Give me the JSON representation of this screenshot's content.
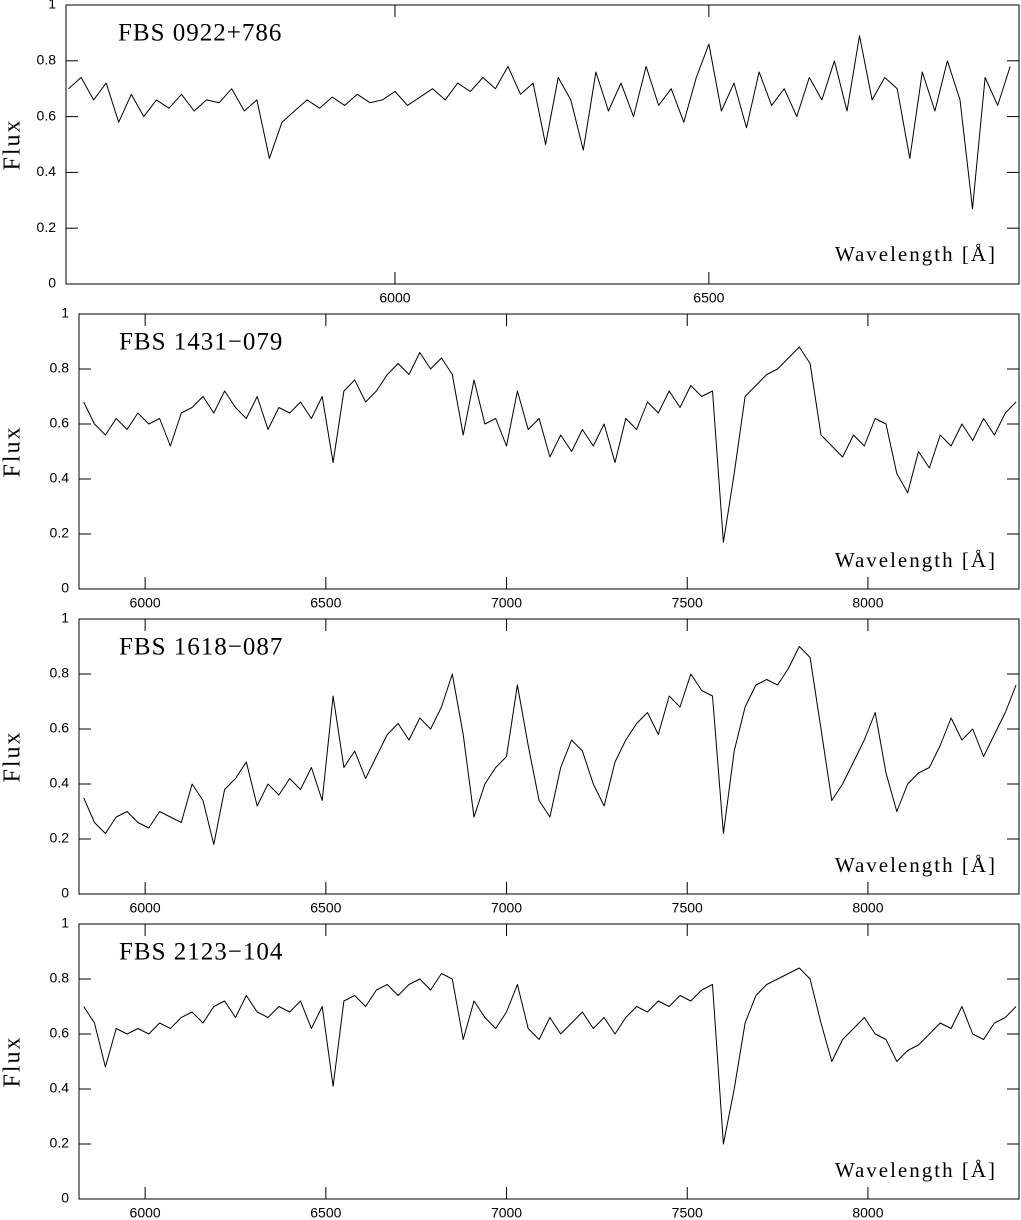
{
  "chart_data": [
    {
      "type": "line",
      "title": "FBS 0922+786",
      "xlabel": "Wavelength [Å]",
      "ylabel": "Flux",
      "color": "#000000",
      "xlim": [
        5476,
        6994
      ],
      "xticks": [
        6000,
        6500
      ],
      "ylim": [
        0,
        1
      ],
      "yticks": [
        0,
        0.2,
        0.4,
        0.6,
        0.8,
        1
      ],
      "x": [
        5480,
        5500,
        5520,
        5540,
        5560,
        5580,
        5600,
        5620,
        5640,
        5660,
        5680,
        5700,
        5720,
        5740,
        5760,
        5780,
        5800,
        5820,
        5840,
        5860,
        5880,
        5900,
        5920,
        5940,
        5960,
        5980,
        6000,
        6020,
        6040,
        6060,
        6080,
        6100,
        6120,
        6140,
        6160,
        6180,
        6200,
        6220,
        6240,
        6260,
        6280,
        6300,
        6320,
        6340,
        6360,
        6380,
        6400,
        6420,
        6440,
        6460,
        6480,
        6500,
        6520,
        6540,
        6560,
        6580,
        6600,
        6620,
        6640,
        6660,
        6680,
        6700,
        6720,
        6740,
        6760,
        6780,
        6800,
        6820,
        6840,
        6860,
        6880,
        6900,
        6920,
        6940,
        6960,
        6980
      ],
      "values": [
        0.7,
        0.74,
        0.66,
        0.72,
        0.58,
        0.68,
        0.6,
        0.66,
        0.63,
        0.68,
        0.62,
        0.66,
        0.65,
        0.7,
        0.62,
        0.66,
        0.45,
        0.58,
        0.62,
        0.66,
        0.63,
        0.67,
        0.64,
        0.68,
        0.65,
        0.66,
        0.69,
        0.64,
        0.67,
        0.7,
        0.66,
        0.72,
        0.69,
        0.74,
        0.7,
        0.78,
        0.68,
        0.72,
        0.5,
        0.74,
        0.66,
        0.48,
        0.76,
        0.62,
        0.72,
        0.6,
        0.78,
        0.64,
        0.7,
        0.58,
        0.74,
        0.86,
        0.62,
        0.72,
        0.56,
        0.76,
        0.64,
        0.7,
        0.6,
        0.74,
        0.66,
        0.8,
        0.62,
        0.89,
        0.66,
        0.74,
        0.7,
        0.45,
        0.76,
        0.62,
        0.8,
        0.66,
        0.27,
        0.74,
        0.64,
        0.78
      ]
    },
    {
      "type": "line",
      "title": "FBS 1431−079",
      "xlabel": "Wavelength [Å]",
      "ylabel": "Flux",
      "color": "#000000",
      "xlim": [
        5817,
        8418
      ],
      "xticks": [
        6000,
        6500,
        7000,
        7500,
        8000
      ],
      "ylim": [
        0,
        1
      ],
      "yticks": [
        0,
        0.2,
        0.4,
        0.6,
        0.8,
        1
      ],
      "x": [
        5830,
        5860,
        5890,
        5920,
        5950,
        5980,
        6010,
        6040,
        6070,
        6100,
        6130,
        6160,
        6190,
        6220,
        6250,
        6280,
        6310,
        6340,
        6370,
        6400,
        6430,
        6460,
        6490,
        6520,
        6550,
        6580,
        6610,
        6640,
        6670,
        6700,
        6730,
        6760,
        6790,
        6820,
        6850,
        6880,
        6910,
        6940,
        6970,
        7000,
        7030,
        7060,
        7090,
        7120,
        7150,
        7180,
        7210,
        7240,
        7270,
        7300,
        7330,
        7360,
        7390,
        7420,
        7450,
        7480,
        7510,
        7540,
        7570,
        7600,
        7630,
        7660,
        7690,
        7720,
        7750,
        7780,
        7810,
        7840,
        7870,
        7900,
        7930,
        7960,
        7990,
        8020,
        8050,
        8080,
        8110,
        8140,
        8170,
        8200,
        8230,
        8260,
        8290,
        8320,
        8350,
        8380,
        8410
      ],
      "values": [
        0.68,
        0.6,
        0.56,
        0.62,
        0.58,
        0.64,
        0.6,
        0.62,
        0.52,
        0.64,
        0.66,
        0.7,
        0.64,
        0.72,
        0.66,
        0.62,
        0.7,
        0.58,
        0.66,
        0.64,
        0.68,
        0.62,
        0.7,
        0.46,
        0.72,
        0.76,
        0.68,
        0.72,
        0.78,
        0.82,
        0.78,
        0.86,
        0.8,
        0.84,
        0.78,
        0.56,
        0.76,
        0.6,
        0.62,
        0.52,
        0.72,
        0.58,
        0.62,
        0.48,
        0.56,
        0.5,
        0.58,
        0.52,
        0.6,
        0.46,
        0.62,
        0.58,
        0.68,
        0.64,
        0.72,
        0.66,
        0.74,
        0.7,
        0.72,
        0.17,
        0.42,
        0.7,
        0.74,
        0.78,
        0.8,
        0.84,
        0.88,
        0.82,
        0.56,
        0.52,
        0.48,
        0.56,
        0.52,
        0.62,
        0.6,
        0.42,
        0.35,
        0.5,
        0.44,
        0.56,
        0.52,
        0.6,
        0.54,
        0.62,
        0.56,
        0.64,
        0.68
      ]
    },
    {
      "type": "line",
      "title": "FBS 1618−087",
      "xlabel": "Wavelength [Å]",
      "ylabel": "Flux",
      "color": "#000000",
      "xlim": [
        5817,
        8418
      ],
      "xticks": [
        6000,
        6500,
        7000,
        7500,
        8000
      ],
      "ylim": [
        0,
        1
      ],
      "yticks": [
        0,
        0.2,
        0.4,
        0.6,
        0.8,
        1
      ],
      "x": [
        5830,
        5860,
        5890,
        5920,
        5950,
        5980,
        6010,
        6040,
        6070,
        6100,
        6130,
        6160,
        6190,
        6220,
        6250,
        6280,
        6310,
        6340,
        6370,
        6400,
        6430,
        6460,
        6490,
        6520,
        6550,
        6580,
        6610,
        6640,
        6670,
        6700,
        6730,
        6760,
        6790,
        6820,
        6850,
        6880,
        6910,
        6940,
        6970,
        7000,
        7030,
        7060,
        7090,
        7120,
        7150,
        7180,
        7210,
        7240,
        7270,
        7300,
        7330,
        7360,
        7390,
        7420,
        7450,
        7480,
        7510,
        7540,
        7570,
        7600,
        7630,
        7660,
        7690,
        7720,
        7750,
        7780,
        7810,
        7840,
        7870,
        7900,
        7930,
        7960,
        7990,
        8020,
        8050,
        8080,
        8110,
        8140,
        8170,
        8200,
        8230,
        8260,
        8290,
        8320,
        8350,
        8380,
        8410
      ],
      "values": [
        0.35,
        0.26,
        0.22,
        0.28,
        0.3,
        0.26,
        0.24,
        0.3,
        0.28,
        0.26,
        0.4,
        0.34,
        0.18,
        0.38,
        0.42,
        0.48,
        0.32,
        0.4,
        0.36,
        0.42,
        0.38,
        0.46,
        0.34,
        0.72,
        0.46,
        0.52,
        0.42,
        0.5,
        0.58,
        0.62,
        0.56,
        0.64,
        0.6,
        0.68,
        0.8,
        0.58,
        0.28,
        0.4,
        0.46,
        0.5,
        0.76,
        0.54,
        0.34,
        0.28,
        0.46,
        0.56,
        0.52,
        0.4,
        0.32,
        0.48,
        0.56,
        0.62,
        0.66,
        0.58,
        0.72,
        0.68,
        0.8,
        0.74,
        0.72,
        0.22,
        0.52,
        0.68,
        0.76,
        0.78,
        0.76,
        0.82,
        0.9,
        0.86,
        0.6,
        0.34,
        0.4,
        0.48,
        0.56,
        0.66,
        0.44,
        0.3,
        0.4,
        0.44,
        0.46,
        0.54,
        0.64,
        0.56,
        0.6,
        0.5,
        0.58,
        0.66,
        0.76
      ]
    },
    {
      "type": "line",
      "title": "FBS 2123−104",
      "xlabel": "Wavelength [Å]",
      "ylabel": "Flux",
      "color": "#000000",
      "xlim": [
        5817,
        8418
      ],
      "xticks": [
        6000,
        6500,
        7000,
        7500,
        8000
      ],
      "ylim": [
        0,
        1
      ],
      "yticks": [
        0,
        0.2,
        0.4,
        0.6,
        0.8,
        1
      ],
      "x": [
        5830,
        5860,
        5890,
        5920,
        5950,
        5980,
        6010,
        6040,
        6070,
        6100,
        6130,
        6160,
        6190,
        6220,
        6250,
        6280,
        6310,
        6340,
        6370,
        6400,
        6430,
        6460,
        6490,
        6520,
        6550,
        6580,
        6610,
        6640,
        6670,
        6700,
        6730,
        6760,
        6790,
        6820,
        6850,
        6880,
        6910,
        6940,
        6970,
        7000,
        7030,
        7060,
        7090,
        7120,
        7150,
        7180,
        7210,
        7240,
        7270,
        7300,
        7330,
        7360,
        7390,
        7420,
        7450,
        7480,
        7510,
        7540,
        7570,
        7600,
        7630,
        7660,
        7690,
        7720,
        7750,
        7780,
        7810,
        7840,
        7870,
        7900,
        7930,
        7960,
        7990,
        8020,
        8050,
        8080,
        8110,
        8140,
        8170,
        8200,
        8230,
        8260,
        8290,
        8320,
        8350,
        8380,
        8410
      ],
      "values": [
        0.7,
        0.64,
        0.48,
        0.62,
        0.6,
        0.62,
        0.6,
        0.64,
        0.62,
        0.66,
        0.68,
        0.64,
        0.7,
        0.72,
        0.66,
        0.74,
        0.68,
        0.66,
        0.7,
        0.68,
        0.72,
        0.62,
        0.7,
        0.41,
        0.72,
        0.74,
        0.7,
        0.76,
        0.78,
        0.74,
        0.78,
        0.8,
        0.76,
        0.82,
        0.8,
        0.58,
        0.72,
        0.66,
        0.62,
        0.68,
        0.78,
        0.62,
        0.58,
        0.66,
        0.6,
        0.64,
        0.68,
        0.62,
        0.66,
        0.6,
        0.66,
        0.7,
        0.68,
        0.72,
        0.7,
        0.74,
        0.72,
        0.76,
        0.78,
        0.2,
        0.4,
        0.64,
        0.74,
        0.78,
        0.8,
        0.82,
        0.84,
        0.8,
        0.64,
        0.5,
        0.58,
        0.62,
        0.66,
        0.6,
        0.58,
        0.5,
        0.54,
        0.56,
        0.6,
        0.64,
        0.62,
        0.7,
        0.6,
        0.58,
        0.64,
        0.66,
        0.7
      ]
    }
  ]
}
